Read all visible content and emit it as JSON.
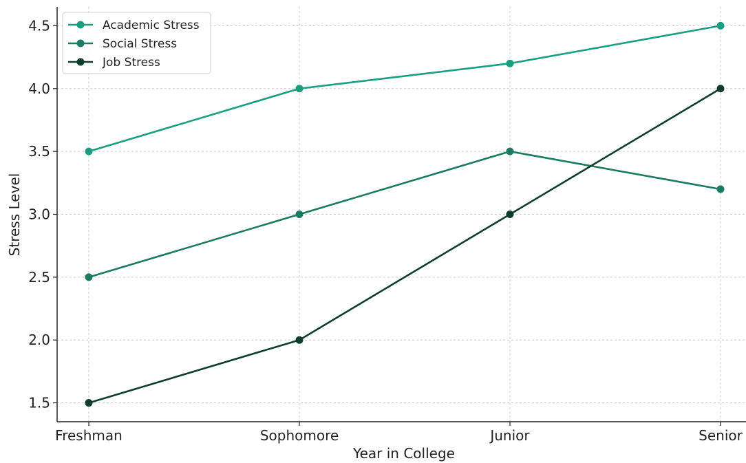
{
  "chart_data": {
    "type": "line",
    "title": "",
    "xlabel": "Year in College",
    "ylabel": "Stress Level",
    "categories": [
      "Freshman",
      "Sophomore",
      "Junior",
      "Senior"
    ],
    "ylim": [
      1.35,
      4.65
    ],
    "yticks": [
      "1.5",
      "2.0",
      "2.5",
      "3.0",
      "3.5",
      "4.0",
      "4.5"
    ],
    "grid": true,
    "legend_position": "top-left",
    "series": [
      {
        "name": "Academic Stress",
        "color": "#1a9e82",
        "values": [
          3.5,
          4.0,
          4.2,
          4.5
        ]
      },
      {
        "name": "Social Stress",
        "color": "#1b7a62",
        "values": [
          2.5,
          3.0,
          3.5,
          3.2
        ]
      },
      {
        "name": "Job Stress",
        "color": "#0e3d2f",
        "values": [
          1.5,
          2.0,
          3.0,
          4.0
        ]
      }
    ]
  }
}
